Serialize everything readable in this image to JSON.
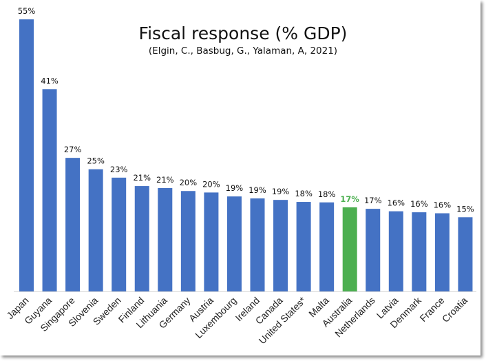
{
  "chart_data": {
    "type": "bar",
    "title": "Fiscal response (% GDP)",
    "subtitle": "(Elgin, C., Basbug, G., Yalaman, A, 2021)",
    "xlabel": "",
    "ylabel": "",
    "ylim": [
      0,
      58
    ],
    "grid": false,
    "legend": "none",
    "categories": [
      "Japan",
      "Guyana",
      "Singapore",
      "Slovenia",
      "Sweden",
      "Finland",
      "Lithuania",
      "Germany",
      "Austria",
      "Luxembourg",
      "Ireland",
      "Canada",
      "United States*",
      "Malta",
      "Australia",
      "Netherlands",
      "Latvia",
      "Denmark",
      "France",
      "Croatia"
    ],
    "values": [
      55.0,
      40.9,
      27.0,
      24.7,
      23.0,
      21.3,
      20.9,
      20.3,
      20.0,
      19.2,
      18.8,
      18.5,
      18.1,
      18.0,
      17.0,
      16.7,
      16.2,
      16.0,
      15.8,
      15.0
    ],
    "data_labels": [
      "55%",
      "41%",
      "27%",
      "25%",
      "23%",
      "21%",
      "21%",
      "20%",
      "20%",
      "19%",
      "19%",
      "19%",
      "18%",
      "18%",
      "17%",
      "17%",
      "16%",
      "16%",
      "16%",
      "15%"
    ],
    "highlight": "Australia",
    "colors": {
      "bar": "#4472c4",
      "highlight": "#4caf50",
      "label": "#111111",
      "highlight_label": "#4caf50"
    }
  }
}
